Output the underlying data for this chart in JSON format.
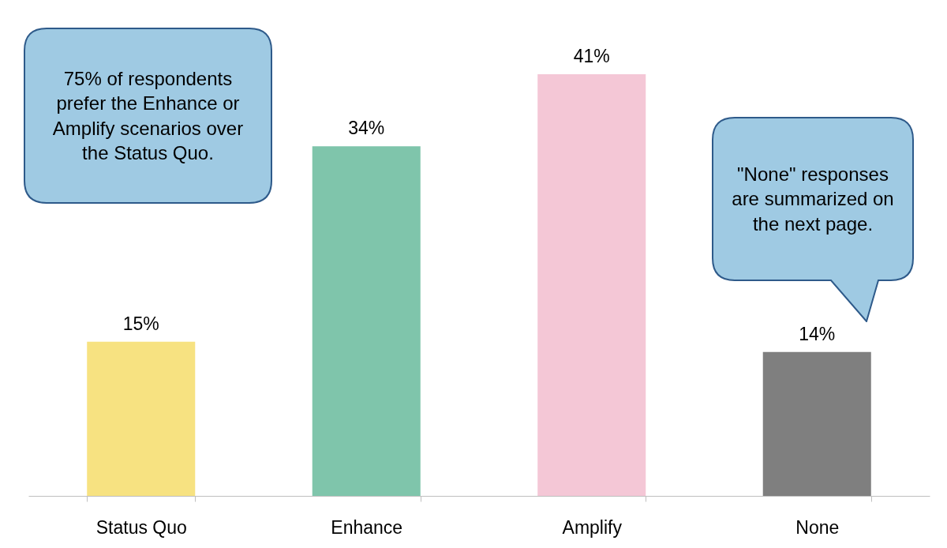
{
  "chart_data": {
    "type": "bar",
    "categories": [
      "Status Quo",
      "Enhance",
      "Amplify",
      "None"
    ],
    "values": [
      15,
      34,
      41,
      14
    ],
    "value_labels": [
      "15%",
      "34%",
      "41%",
      "14%"
    ],
    "colors": [
      "#f7e281",
      "#7fc5ab",
      "#f4c7d6",
      "#7f7f7f"
    ],
    "annotations": [
      "75% of respondents prefer the Enhance or Amplify scenarios over the Status Quo.",
      "\"None\" responses are summarized on the next page."
    ]
  }
}
